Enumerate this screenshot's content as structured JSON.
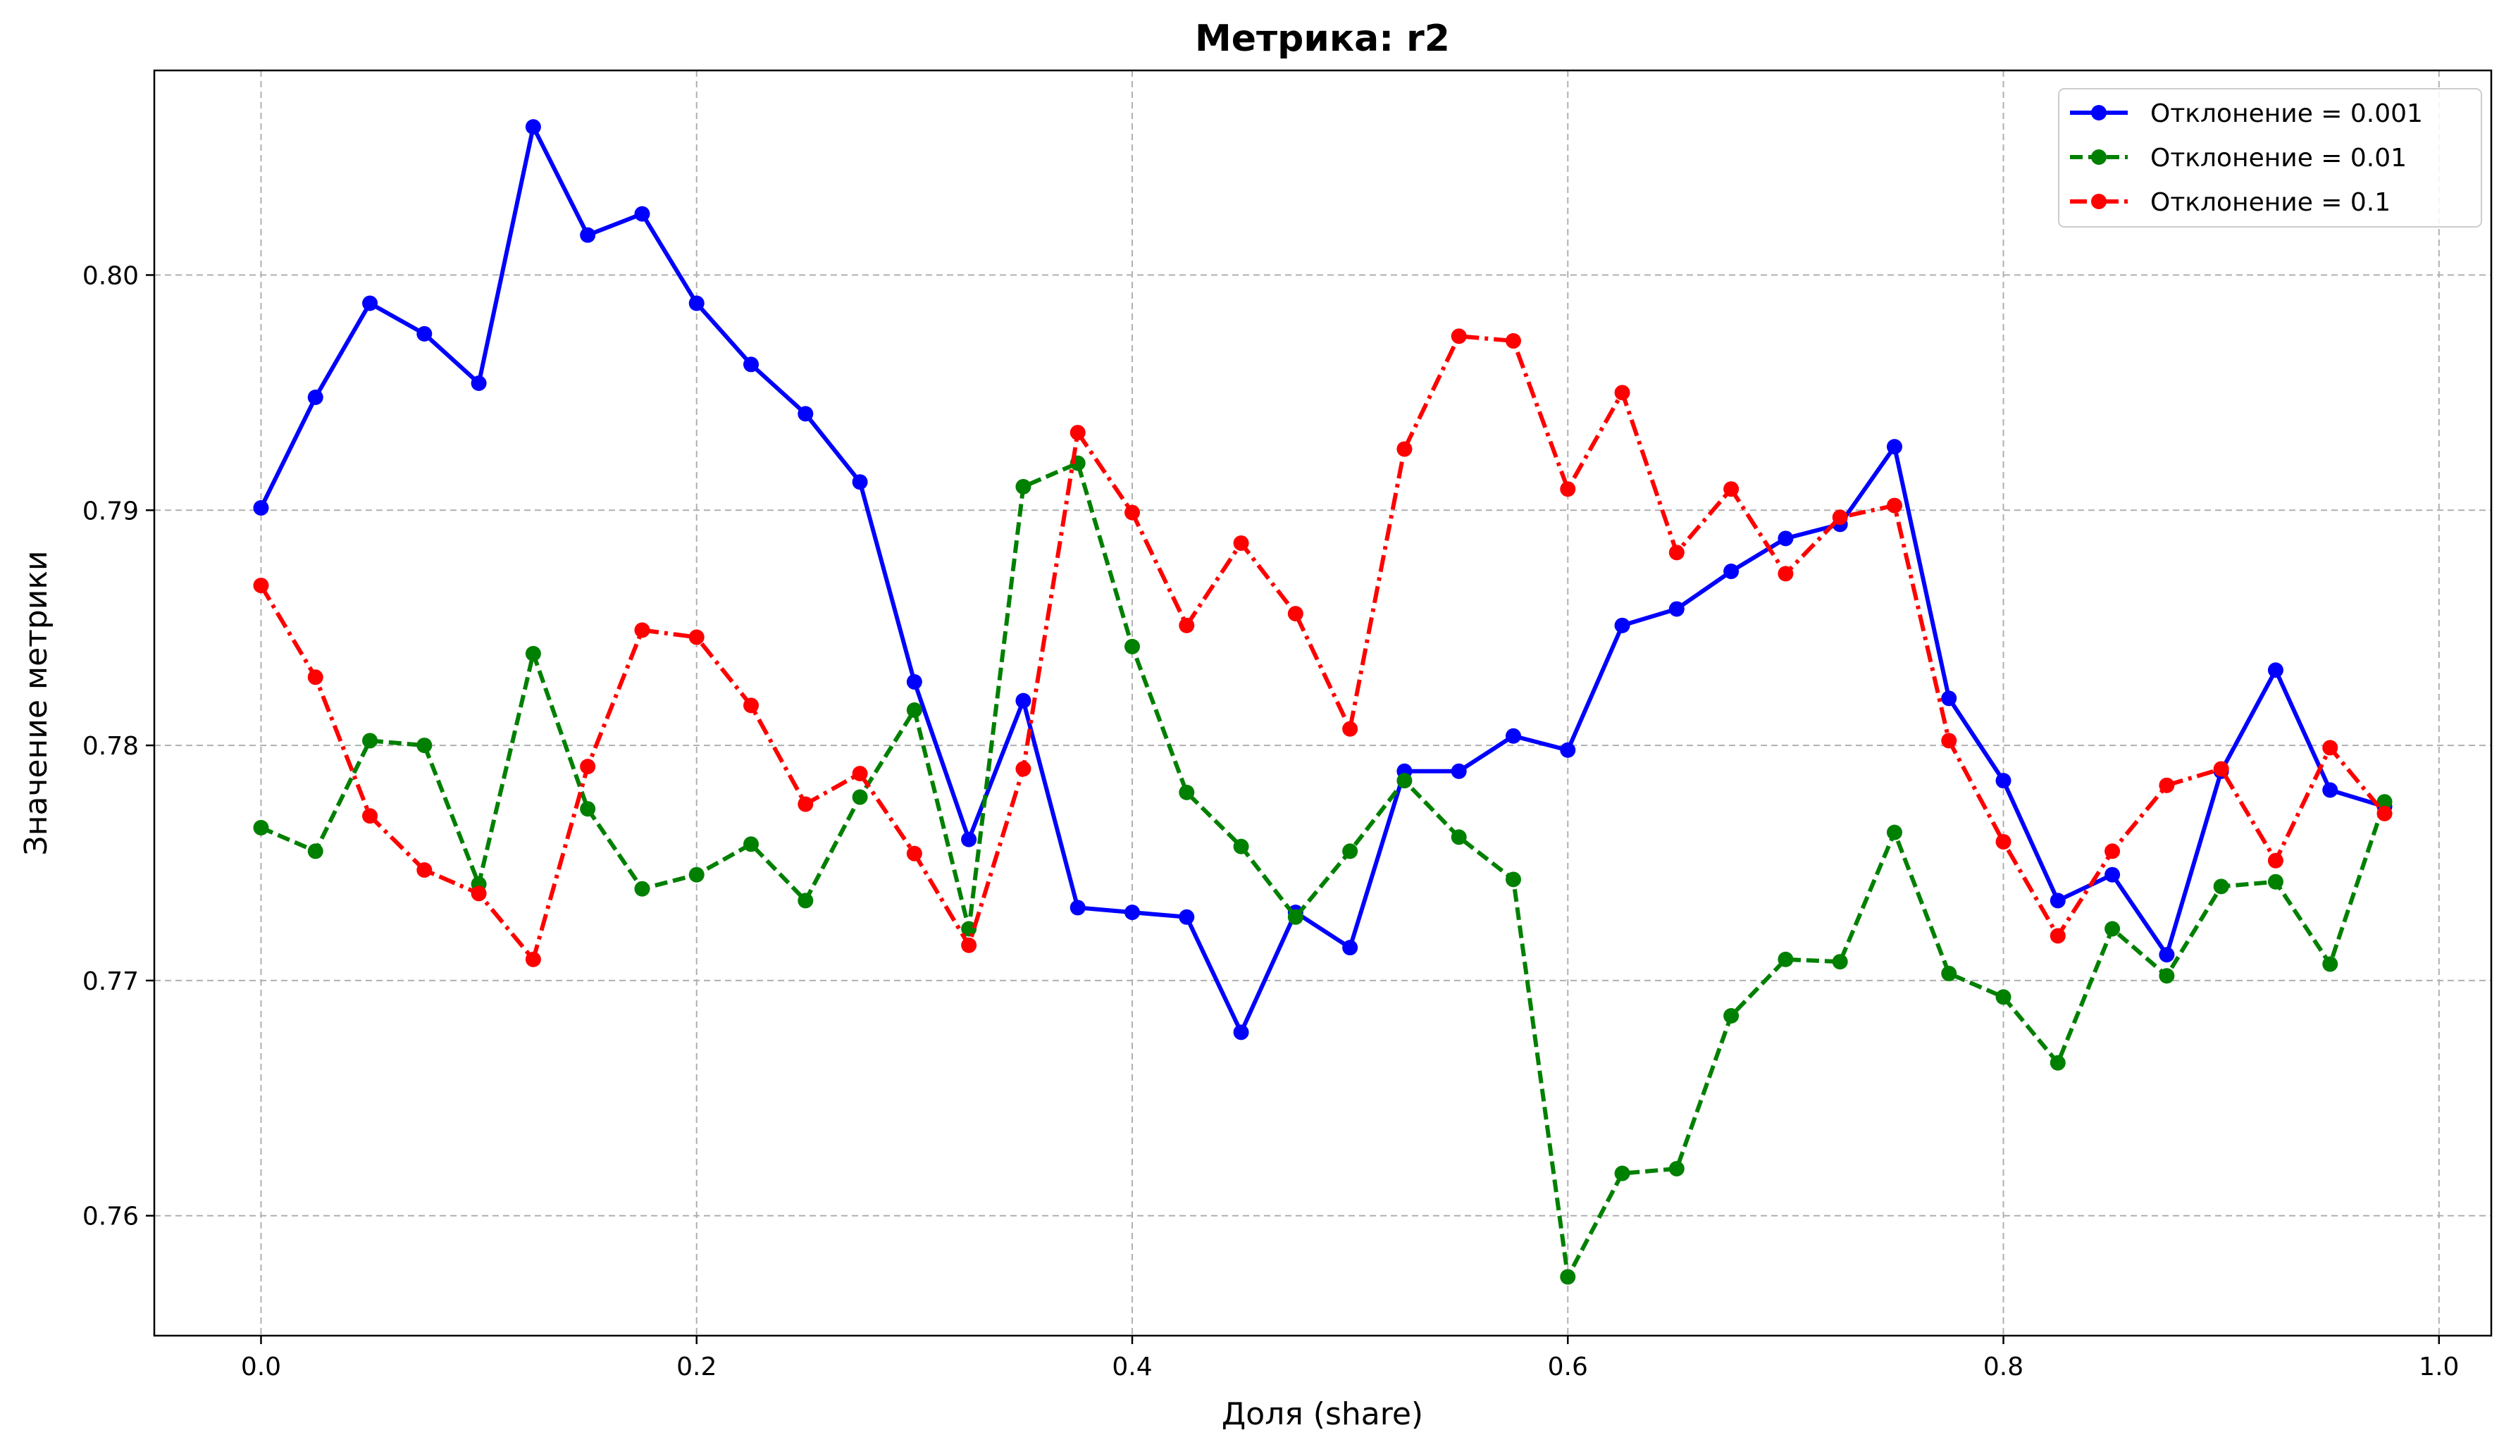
{
  "chart_data": {
    "type": "line",
    "title": "Метрика: r2",
    "xlabel": "Доля (share)",
    "ylabel": "Значение метрики",
    "xlim": [
      -0.049,
      1.024
    ],
    "ylim": [
      0.7549,
      0.8087
    ],
    "x_ticks": [
      0.0,
      0.2,
      0.4,
      0.6,
      0.8,
      1.0
    ],
    "x_tick_labels": [
      "0.0",
      "0.2",
      "0.4",
      "0.6",
      "0.8",
      "1.0"
    ],
    "y_ticks": [
      0.76,
      0.77,
      0.78,
      0.79,
      0.8
    ],
    "y_tick_labels": [
      "0.76",
      "0.77",
      "0.78",
      "0.79",
      "0.80"
    ],
    "grid": true,
    "legend_position": "top-right",
    "x": [
      0.0,
      0.025,
      0.05,
      0.075,
      0.1,
      0.125,
      0.15,
      0.175,
      0.2,
      0.225,
      0.25,
      0.275,
      0.3,
      0.325,
      0.35,
      0.375,
      0.4,
      0.425,
      0.45,
      0.475,
      0.5,
      0.525,
      0.55,
      0.575,
      0.6,
      0.625,
      0.65,
      0.675,
      0.7,
      0.725,
      0.75,
      0.775,
      0.8,
      0.825,
      0.85,
      0.875,
      0.9,
      0.925,
      0.95,
      0.975
    ],
    "series": [
      {
        "name": "Отклонение = 0.001",
        "color": "#0000ff",
        "line_style": "solid",
        "values": [
          0.7901,
          0.7948,
          0.7988,
          0.7975,
          0.7954,
          0.8063,
          0.8017,
          0.8026,
          0.7988,
          0.7962,
          0.7941,
          0.7912,
          0.7827,
          0.776,
          0.7819,
          0.7731,
          0.7729,
          0.7727,
          0.7678,
          0.7729,
          0.7714,
          0.7789,
          0.7789,
          0.7804,
          0.7798,
          0.7851,
          0.7858,
          0.7874,
          0.7888,
          0.7894,
          0.7927,
          0.782,
          0.7785,
          0.7734,
          0.7745,
          0.7711,
          0.7789,
          0.7832,
          0.7781,
          0.7774
        ]
      },
      {
        "name": "Отклонение = 0.01",
        "color": "#008000",
        "line_style": "dashed",
        "values": [
          0.7765,
          0.7755,
          0.7802,
          0.78,
          0.7741,
          0.7839,
          0.7773,
          0.7739,
          0.7745,
          0.7758,
          0.7734,
          0.7778,
          0.7815,
          0.7722,
          0.791,
          0.792,
          0.7842,
          0.778,
          0.7757,
          0.7727,
          0.7755,
          0.7785,
          0.7761,
          0.7743,
          0.7574,
          0.7618,
          0.762,
          0.7685,
          0.7709,
          0.7708,
          0.7763,
          0.7703,
          0.7693,
          0.7665,
          0.7722,
          0.7702,
          0.774,
          0.7742,
          0.7707,
          0.7776
        ]
      },
      {
        "name": "Отклонение = 0.1",
        "color": "#ff0000",
        "line_style": "dashdot",
        "values": [
          0.7868,
          0.7829,
          0.777,
          0.7747,
          0.7737,
          0.7709,
          0.7791,
          0.7849,
          0.7846,
          0.7817,
          0.7775,
          0.7788,
          0.7754,
          0.7715,
          0.779,
          0.7933,
          0.7899,
          0.7851,
          0.7886,
          0.7856,
          0.7807,
          0.7926,
          0.7974,
          0.7972,
          0.7909,
          0.795,
          0.7882,
          0.7909,
          0.7873,
          0.7897,
          0.7902,
          0.7802,
          0.7759,
          0.7719,
          0.7755,
          0.7783,
          0.779,
          0.7751,
          0.7799,
          0.7771
        ]
      }
    ]
  }
}
